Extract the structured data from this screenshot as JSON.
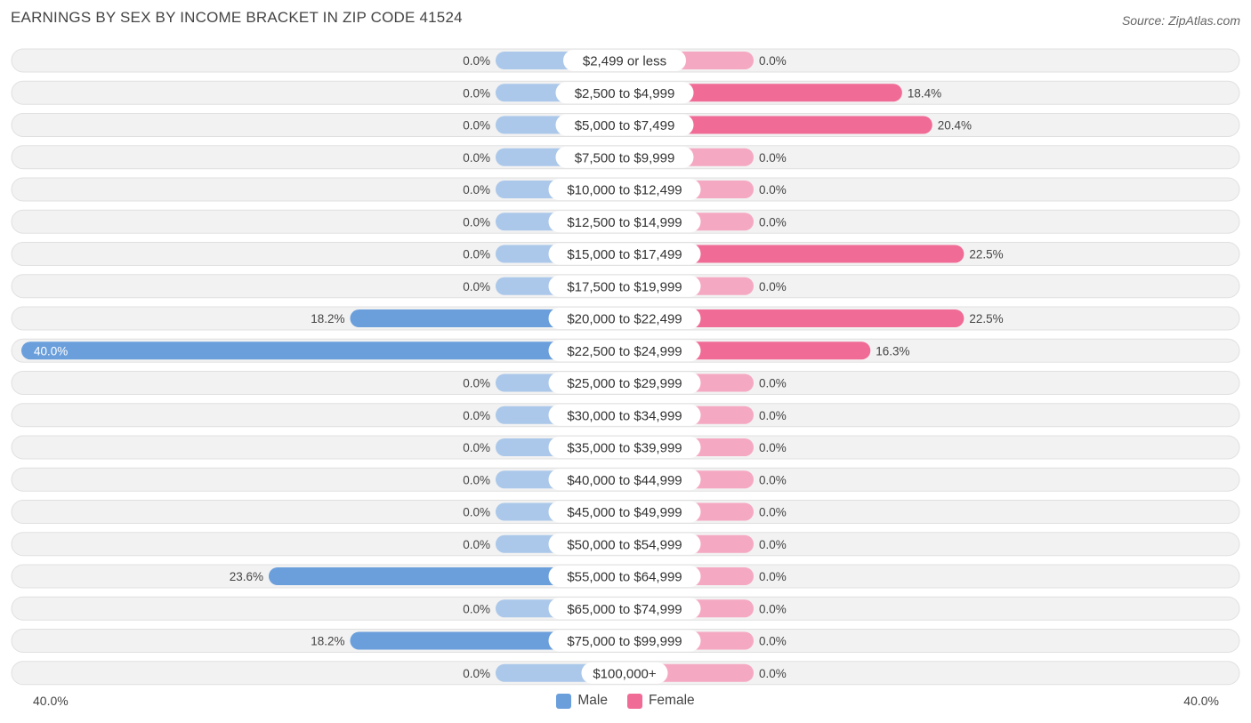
{
  "title": "EARNINGS BY SEX BY INCOME BRACKET IN ZIP CODE 41524",
  "source": "Source: ZipAtlas.com",
  "colors": {
    "male": "#6a9fdc",
    "male_light": "#abc8ea",
    "female": "#f06b96",
    "female_light": "#f5a8c2",
    "row_bg": "#f2f2f2"
  },
  "chart_data": {
    "type": "bar",
    "orientation": "horizontal-diverging",
    "title": "EARNINGS BY SEX BY INCOME BRACKET IN ZIP CODE 41524",
    "categories": [
      "$2,499 or less",
      "$2,500 to $4,999",
      "$5,000 to $7,499",
      "$7,500 to $9,999",
      "$10,000 to $12,499",
      "$12,500 to $14,999",
      "$15,000 to $17,499",
      "$17,500 to $19,999",
      "$20,000 to $22,499",
      "$22,500 to $24,999",
      "$25,000 to $29,999",
      "$30,000 to $34,999",
      "$35,000 to $39,999",
      "$40,000 to $44,999",
      "$45,000 to $49,999",
      "$50,000 to $54,999",
      "$55,000 to $64,999",
      "$65,000 to $74,999",
      "$75,000 to $99,999",
      "$100,000+"
    ],
    "series": [
      {
        "name": "Male",
        "values": [
          0.0,
          0.0,
          0.0,
          0.0,
          0.0,
          0.0,
          0.0,
          0.0,
          18.2,
          40.0,
          0.0,
          0.0,
          0.0,
          0.0,
          0.0,
          0.0,
          23.6,
          0.0,
          18.2,
          0.0
        ],
        "labels": [
          "0.0%",
          "0.0%",
          "0.0%",
          "0.0%",
          "0.0%",
          "0.0%",
          "0.0%",
          "0.0%",
          "18.2%",
          "40.0%",
          "0.0%",
          "0.0%",
          "0.0%",
          "0.0%",
          "0.0%",
          "0.0%",
          "23.6%",
          "0.0%",
          "18.2%",
          "0.0%"
        ]
      },
      {
        "name": "Female",
        "values": [
          0.0,
          18.4,
          20.4,
          0.0,
          0.0,
          0.0,
          22.5,
          0.0,
          22.5,
          16.3,
          0.0,
          0.0,
          0.0,
          0.0,
          0.0,
          0.0,
          0.0,
          0.0,
          0.0,
          0.0
        ],
        "labels": [
          "0.0%",
          "18.4%",
          "20.4%",
          "0.0%",
          "0.0%",
          "0.0%",
          "22.5%",
          "0.0%",
          "22.5%",
          "16.3%",
          "0.0%",
          "0.0%",
          "0.0%",
          "0.0%",
          "0.0%",
          "0.0%",
          "0.0%",
          "0.0%",
          "0.0%",
          "0.0%"
        ]
      }
    ],
    "xlim": [
      -40,
      40
    ],
    "axis_left_label": "40.0%",
    "axis_right_label": "40.0%",
    "legend": [
      "Male",
      "Female"
    ],
    "legend_position": "bottom-center"
  }
}
